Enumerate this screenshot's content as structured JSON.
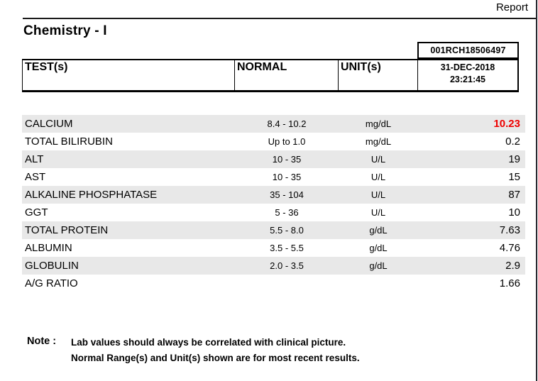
{
  "page": {
    "report_label": "Report"
  },
  "header": {
    "title": "Chemistry - I",
    "accession_number": "001RCH18506497",
    "columns": {
      "test": "TEST(s)",
      "normal": "NORMAL",
      "unit": "UNIT(s)"
    },
    "result_datetime": {
      "date": "31-DEC-2018",
      "time": "23:21:45"
    }
  },
  "results": {
    "rows": [
      {
        "test": "CALCIUM",
        "normal": "8.4 - 10.2",
        "unit": "mg/dL",
        "value": "10.23",
        "flag": "high"
      },
      {
        "test": "TOTAL BILIRUBIN",
        "normal": "Up to 1.0",
        "unit": "mg/dL",
        "value": "0.2",
        "flag": ""
      },
      {
        "test": "ALT",
        "normal": "10 - 35",
        "unit": "U/L",
        "value": "19",
        "flag": ""
      },
      {
        "test": "AST",
        "normal": "10 - 35",
        "unit": "U/L",
        "value": "15",
        "flag": ""
      },
      {
        "test": "ALKALINE PHOSPHATASE",
        "normal": "35 - 104",
        "unit": "U/L",
        "value": "87",
        "flag": ""
      },
      {
        "test": "GGT",
        "normal": "5 - 36",
        "unit": "U/L",
        "value": "10",
        "flag": ""
      },
      {
        "test": "TOTAL PROTEIN",
        "normal": "5.5 - 8.0",
        "unit": "g/dL",
        "value": "7.63",
        "flag": ""
      },
      {
        "test": "ALBUMIN",
        "normal": "3.5 - 5.5",
        "unit": "g/dL",
        "value": "4.76",
        "flag": ""
      },
      {
        "test": "GLOBULIN",
        "normal": "2.0 - 3.5",
        "unit": "g/dL",
        "value": "2.9",
        "flag": ""
      },
      {
        "test": "A/G RATIO",
        "normal": "",
        "unit": "",
        "value": "1.66",
        "flag": ""
      }
    ]
  },
  "note": {
    "label": "Note :",
    "lines": [
      "Lab values should always be correlated with clinical picture.",
      "Normal Range(s) and Unit(s) shown are for most recent results."
    ]
  },
  "colors": {
    "abnormal_value": "#ee0000",
    "row_stripe": "#e8e8e8"
  }
}
